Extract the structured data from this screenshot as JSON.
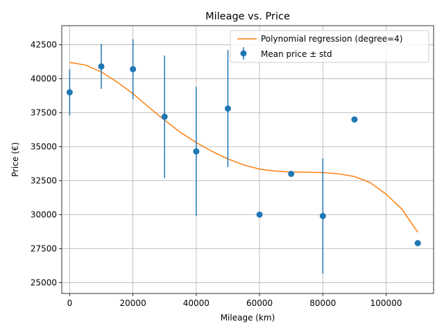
{
  "chart_data": {
    "type": "scatter",
    "title": "Mileage vs. Price",
    "xlabel": "Mileage (km)",
    "ylabel": "Price (€)",
    "xlim": [
      -2500,
      115000
    ],
    "ylim": [
      24200,
      43900
    ],
    "x_ticks": [
      0,
      20000,
      40000,
      60000,
      80000,
      100000
    ],
    "x_tick_labels": [
      "0",
      "20000",
      "40000",
      "60000",
      "80000",
      "100000"
    ],
    "y_ticks": [
      25000,
      27500,
      30000,
      32500,
      35000,
      37500,
      40000,
      42500
    ],
    "y_tick_labels": [
      "25000",
      "27500",
      "30000",
      "32500",
      "35000",
      "37500",
      "40000",
      "42500"
    ],
    "grid": true,
    "legend_position": "top-right",
    "series": [
      {
        "name": "Mean price ± std",
        "kind": "errorbar",
        "color": "#1f77b4",
        "x": [
          0,
          10000,
          20000,
          30000,
          40000,
          50000,
          60000,
          70000,
          80000,
          90000,
          110000
        ],
        "y": [
          39000,
          40900,
          40700,
          37200,
          34650,
          37800,
          30000,
          33000,
          29900,
          37000,
          27900
        ],
        "err": [
          1700,
          1650,
          2200,
          4500,
          4750,
          4300,
          0,
          0,
          4250,
          0,
          0
        ]
      },
      {
        "name": "Polynomial regression (degree=4)",
        "kind": "line",
        "color": "#ff7f0e",
        "x": [
          0,
          5000,
          10000,
          15000,
          20000,
          25000,
          30000,
          35000,
          40000,
          45000,
          50000,
          55000,
          60000,
          65000,
          70000,
          75000,
          80000,
          85000,
          90000,
          95000,
          100000,
          105000,
          110000
        ],
        "y": [
          41200,
          41000,
          40500,
          39750,
          38900,
          37900,
          36950,
          36050,
          35300,
          34650,
          34100,
          33650,
          33350,
          33200,
          33130,
          33120,
          33100,
          33000,
          32800,
          32350,
          31500,
          30400,
          28700
        ]
      }
    ]
  }
}
